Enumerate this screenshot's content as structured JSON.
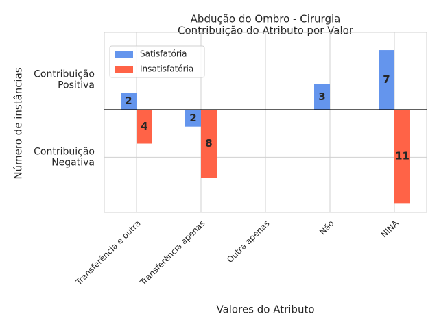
{
  "chart_data": {
    "type": "bar",
    "title": "Abdução do Ombro - Cirurgia\nContribuição do Atributo por Valor",
    "x_label": "Valores do Atributo",
    "y_label": "Número de instâncias",
    "categories": [
      "Transferência e outra",
      "Transferência apenas",
      "Outra apenas",
      "Não",
      "NINA"
    ],
    "series": [
      {
        "name": "Satisfatória",
        "color": "#6495ed",
        "values": [
          2,
          -2,
          null,
          3,
          7
        ],
        "value_labels": [
          "2",
          "2",
          null,
          "3",
          "7"
        ]
      },
      {
        "name": "Insatisfatória",
        "color": "#ff6347",
        "values": [
          -4,
          -8,
          null,
          null,
          -11
        ],
        "value_labels": [
          "4",
          "8",
          null,
          null,
          "11"
        ]
      }
    ],
    "ylim": [
      -12.1,
      9.1
    ],
    "yticks": [
      {
        "value": 3.5,
        "label": "Contribuição\nPositiva"
      },
      {
        "value": -5.6,
        "label": "Contribuição\nNegativa"
      }
    ],
    "grid": true,
    "legend": "upper left"
  }
}
